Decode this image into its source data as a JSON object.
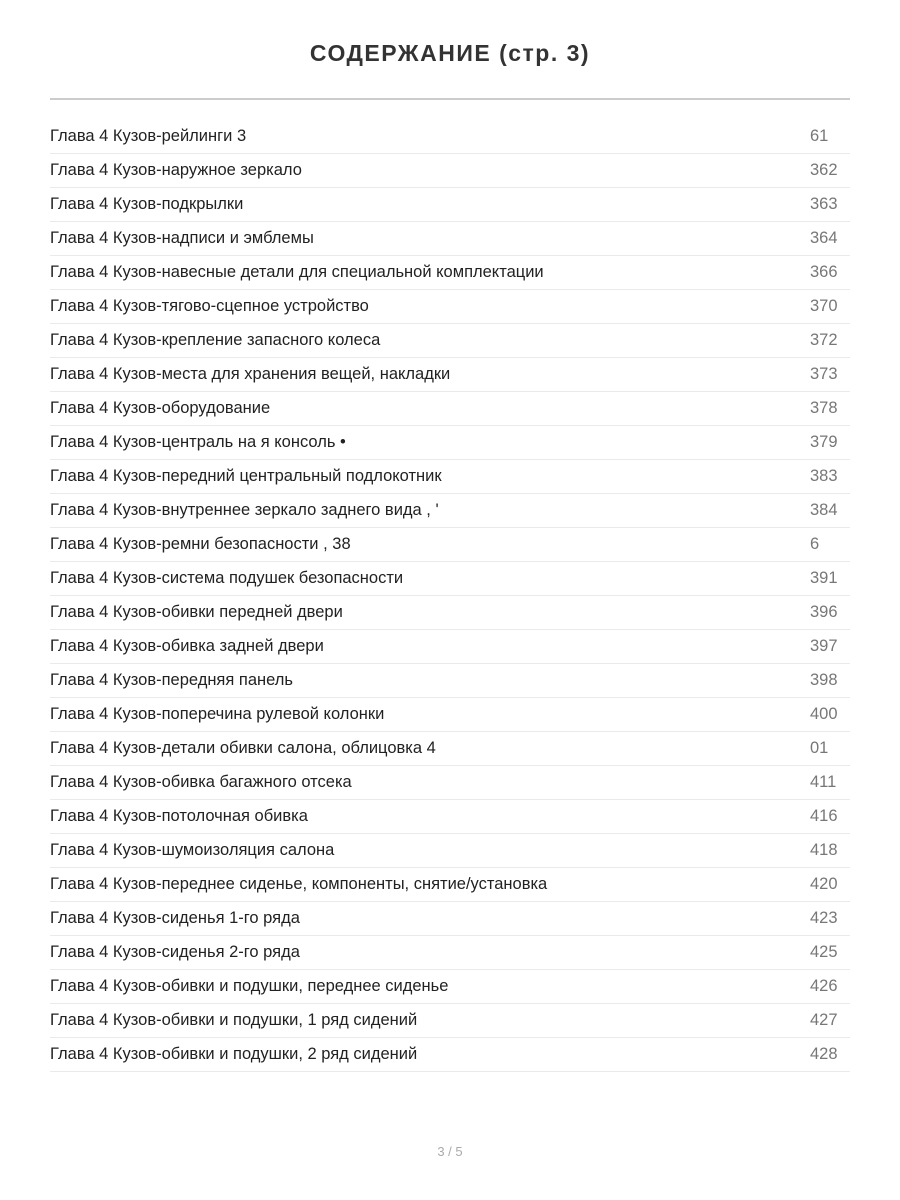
{
  "title": "СОДЕРЖАНИЕ (стр. 3)",
  "entries": [
    {
      "title": "Глава 4 Кузов-рейлинги 3",
      "page": "61"
    },
    {
      "title": "Глава 4 Кузов-наружное зеркало",
      "page": "362"
    },
    {
      "title": "Глава 4 Кузов-подкрылки",
      "page": "363"
    },
    {
      "title": "Глава 4 Кузов-надписи и эмблемы",
      "page": "364"
    },
    {
      "title": "Глава 4 Кузов-навесные детали для специальной комплектации",
      "page": "366"
    },
    {
      "title": "Глава 4 Кузов-тягово-сцепное устройство",
      "page": "370"
    },
    {
      "title": "Глава 4 Кузов-крепление запасного колеса",
      "page": "372"
    },
    {
      "title": "Глава 4 Кузов-места для хранения вещей, накладки",
      "page": "373"
    },
    {
      "title": "Глава 4 Кузов-оборудование",
      "page": "378"
    },
    {
      "title": "Глава 4 Кузов-централь на я консоль •",
      "page": "379"
    },
    {
      "title": "Глава 4 Кузов-передний центральный подлокотник",
      "page": "383"
    },
    {
      "title": "Глава 4 Кузов-внутреннее зеркало заднего вида , '",
      "page": "384"
    },
    {
      "title": "Глава 4 Кузов-ремни безопасности , 38",
      "page": "6"
    },
    {
      "title": "Глава 4 Кузов-система подушек безопасности",
      "page": "391"
    },
    {
      "title": "Глава 4 Кузов-обивки передней двери",
      "page": "396"
    },
    {
      "title": "Глава 4 Кузов-обивка задней двери",
      "page": "397"
    },
    {
      "title": "Глава 4 Кузов-передняя панель",
      "page": "398"
    },
    {
      "title": "Глава 4 Кузов-поперечина рулевой колонки",
      "page": "400"
    },
    {
      "title": "Глава 4 Кузов-детали обивки салона, облицовка 4",
      "page": "01"
    },
    {
      "title": "Глава 4 Кузов-обивка багажного отсека",
      "page": "411"
    },
    {
      "title": "Глава 4 Кузов-потолочная обивка",
      "page": "416"
    },
    {
      "title": "Глава 4 Кузов-шумоизоляция салона",
      "page": "418"
    },
    {
      "title": "Глава 4 Кузов-переднее сиденье, компоненты, снятие/установка",
      "page": "420"
    },
    {
      "title": "Глава 4 Кузов-сиденья 1-го ряда",
      "page": "423"
    },
    {
      "title": "Глава 4 Кузов-сиденья 2-го ряда",
      "page": "425"
    },
    {
      "title": "Глава 4 Кузов-обивки и подушки, переднее сиденье",
      "page": "426"
    },
    {
      "title": "Глава 4 Кузов-обивки и подушки, 1 ряд сидений",
      "page": "427"
    },
    {
      "title": "Глава 4 Кузов-обивки и подушки, 2 ряд сидений",
      "page": "428"
    }
  ],
  "footer": {
    "page_indicator": "3 / 5"
  }
}
